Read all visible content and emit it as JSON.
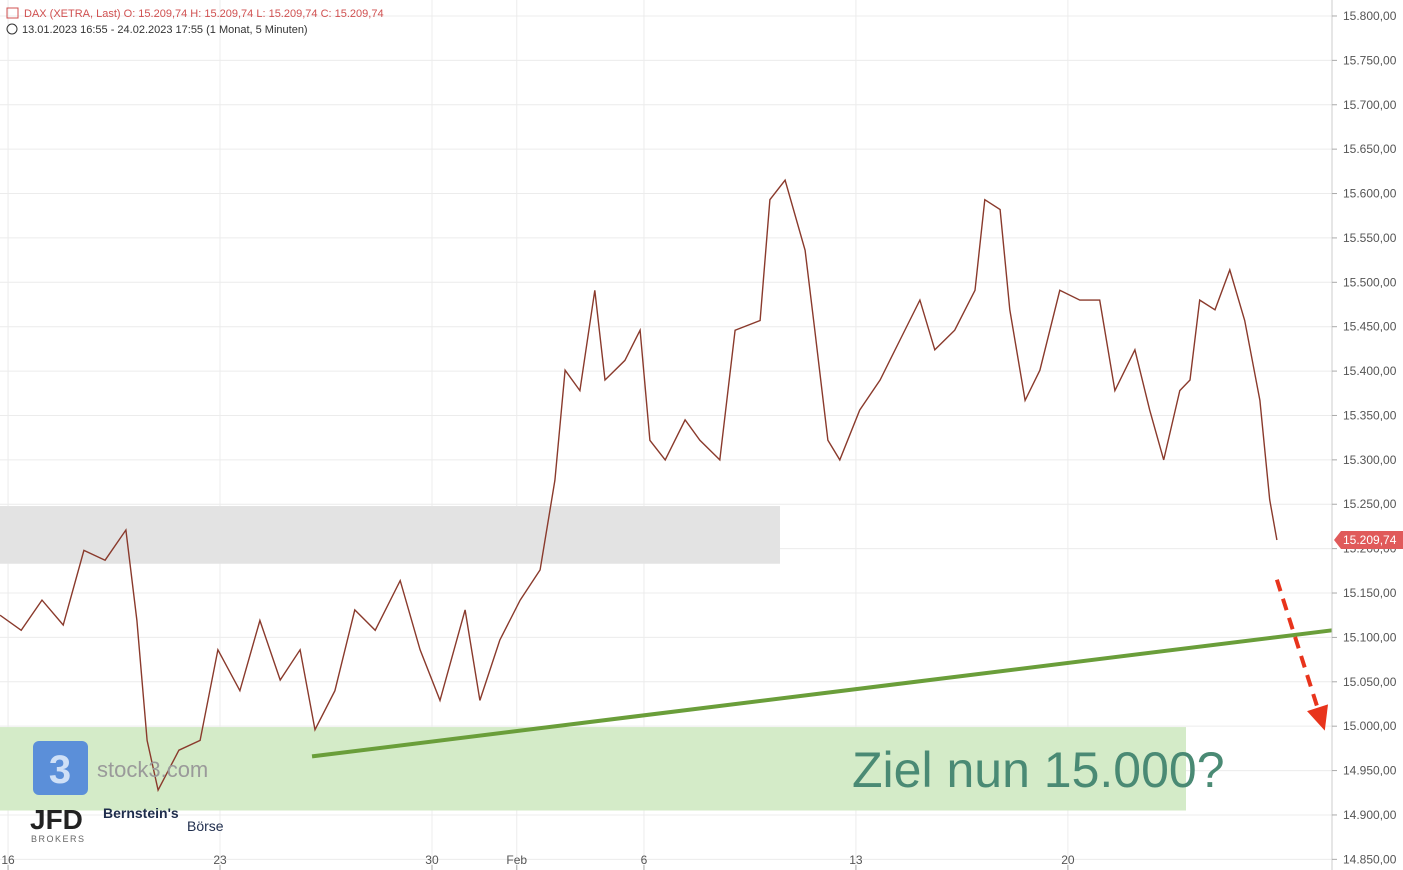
{
  "header": {
    "line1": "DAX (XETRA, Last)  O: 15.209,74  H: 15.209,74  L: 15.209,74  C: 15.209,74",
    "line2": "13.01.2023 16:55 - 24.02.2023 17:55   (1 Monat, 5 Minuten)"
  },
  "logos": {
    "stock3": "stock3.com",
    "stock3_icon": "3",
    "jfd": "JFD",
    "brokers": "BROKERS",
    "bernstein": "Bernstein's",
    "boerse": "Börse"
  },
  "chart_data": {
    "type": "line",
    "annotation": "Ziel nun 15.000?",
    "xlim": [
      -0.19,
      31.23
    ],
    "ylim": [
      14838,
      15818
    ],
    "xticks": [
      {
        "value": 0,
        "label": "16"
      },
      {
        "value": 5,
        "label": "23"
      },
      {
        "value": 10,
        "label": "30"
      },
      {
        "value": 12,
        "label": "Feb"
      },
      {
        "value": 15,
        "label": "6"
      },
      {
        "value": 20,
        "label": "13"
      },
      {
        "value": 25,
        "label": "20"
      }
    ],
    "yticks": [
      {
        "value": 14850,
        "label": "14.850,00"
      },
      {
        "value": 14900,
        "label": "14.900,00"
      },
      {
        "value": 14950,
        "label": "14.950,00"
      },
      {
        "value": 15000,
        "label": "15.000,00"
      },
      {
        "value": 15050,
        "label": "15.050,00"
      },
      {
        "value": 15100,
        "label": "15.100,00"
      },
      {
        "value": 15150,
        "label": "15.150,00"
      },
      {
        "value": 15200,
        "label": "15.200,00"
      },
      {
        "value": 15250,
        "label": "15.250,00"
      },
      {
        "value": 15300,
        "label": "15.300,00"
      },
      {
        "value": 15350,
        "label": "15.350,00"
      },
      {
        "value": 15400,
        "label": "15.400,00"
      },
      {
        "value": 15450,
        "label": "15.450,00"
      },
      {
        "value": 15500,
        "label": "15.500,00"
      },
      {
        "value": 15550,
        "label": "15.550,00"
      },
      {
        "value": 15600,
        "label": "15.600,00"
      },
      {
        "value": 15650,
        "label": "15.650,00"
      },
      {
        "value": 15700,
        "label": "15.700,00"
      },
      {
        "value": 15750,
        "label": "15.750,00"
      },
      {
        "value": 15800,
        "label": "15.800,00"
      }
    ],
    "grid": true,
    "x": [
      -0.19,
      0.31,
      0.8,
      1.3,
      1.79,
      2.29,
      2.78,
      3.04,
      3.28,
      3.54,
      4.03,
      4.53,
      4.95,
      5.47,
      5.94,
      6.42,
      6.89,
      7.24,
      7.71,
      8.18,
      8.66,
      9.25,
      9.72,
      10.19,
      10.78,
      11.13,
      11.6,
      12.08,
      12.55,
      12.9,
      13.14,
      13.49,
      13.84,
      14.08,
      14.55,
      14.91,
      15.14,
      15.5,
      15.97,
      16.32,
      16.79,
      17.15,
      17.74,
      17.97,
      18.33,
      18.8,
      19.03,
      19.34,
      19.62,
      20.09,
      20.57,
      21.04,
      21.51,
      21.86,
      22.33,
      22.81,
      23.04,
      23.4,
      23.63,
      23.99,
      24.34,
      24.81,
      25.28,
      25.75,
      26.11,
      26.58,
      26.93,
      27.26,
      27.64,
      27.88,
      28.11,
      28.47,
      28.82,
      29.17,
      29.53,
      29.76,
      29.93
    ],
    "series": [
      {
        "name": "DAX",
        "color": "#8a3a2c",
        "values": [
          15125,
          15108,
          15142,
          15114,
          15198,
          15187,
          15221,
          15119,
          14984,
          14928,
          14973,
          14984,
          15086,
          15040,
          15119,
          15052,
          15086,
          14996,
          15040,
          15131,
          15108,
          15164,
          15086,
          15029,
          15131,
          15029,
          15097,
          15142,
          15176,
          15277,
          15401,
          15378,
          15491,
          15390,
          15412,
          15446,
          15322,
          15300,
          15345,
          15322,
          15300,
          15446,
          15457,
          15593,
          15615,
          15536,
          15446,
          15322,
          15300,
          15356,
          15390,
          15435,
          15480,
          15424,
          15446,
          15491,
          15593,
          15582,
          15469,
          15367,
          15401,
          15491,
          15480,
          15480,
          15378,
          15424,
          15356,
          15300,
          15378,
          15390,
          15480,
          15469,
          15514,
          15457,
          15367,
          15255,
          15209.74
        ]
      }
    ],
    "price_tag": {
      "value": 15209.74,
      "label": "15.209,74",
      "color": "#e05a5a"
    },
    "zones": [
      {
        "y": [
          15183,
          15248
        ],
        "color": "#e3e3e3"
      },
      {
        "y": [
          14905,
          14999
        ],
        "color": "#d4ebc8"
      }
    ],
    "trend_line": {
      "x": [
        7.17,
        31.23
      ],
      "y": [
        14966,
        15108
      ],
      "color": "#6a9e3a"
    },
    "target_arrow": {
      "x": [
        29.93,
        31.06
      ],
      "y": [
        15165,
        14995
      ],
      "color": "#e8341c"
    }
  }
}
